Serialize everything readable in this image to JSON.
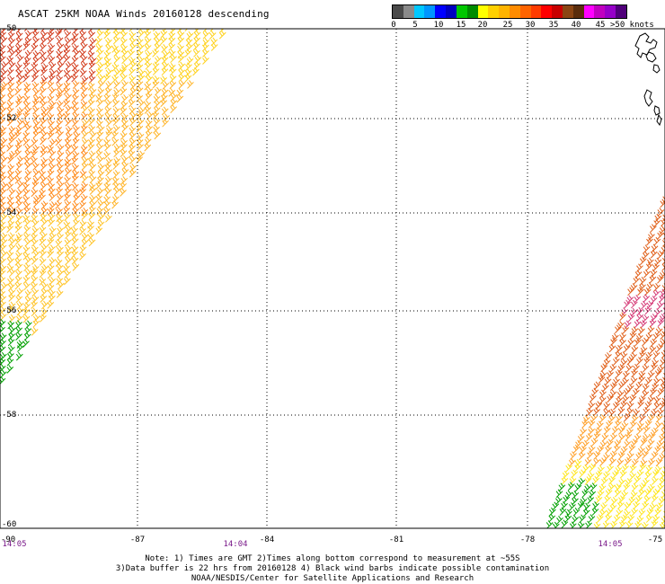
{
  "title": "ASCAT 25KM NOAA Winds 20160128 descending",
  "legend": {
    "colors": [
      "#4a4a4a",
      "#8a8a8a",
      "#00c8ff",
      "#0096ff",
      "#0000ff",
      "#0000c0",
      "#00c800",
      "#008c00",
      "#ffff00",
      "#ffd000",
      "#ffb400",
      "#ff8c00",
      "#ff6400",
      "#ff3c00",
      "#ff0000",
      "#c80000",
      "#8b4513",
      "#5a2d0c",
      "#ff00ff",
      "#c000c0",
      "#9600c8",
      "#50007a"
    ],
    "ticks": [
      "0",
      "5",
      "10",
      "15",
      "20",
      "25",
      "30",
      "35",
      "40",
      "45",
      ">50 knots"
    ]
  },
  "latitudes": [
    "-50",
    "-52",
    "-54",
    "-56",
    "-58",
    "-60"
  ],
  "longitudes": [
    "-90",
    "-87",
    "-84",
    "-81",
    "-78",
    "-75"
  ],
  "times": [
    "14:05",
    "14:04",
    "14:05"
  ],
  "notes": [
    "Note: 1) Times are GMT 2)Times along bottom correspond to measurement at ~55S",
    "3)Data buffer is 22 hrs from 20160128 4) Black wind barbs indicate possible contamination",
    "NOAA/NESDIS/Center for Satellite Applications and Research"
  ]
}
